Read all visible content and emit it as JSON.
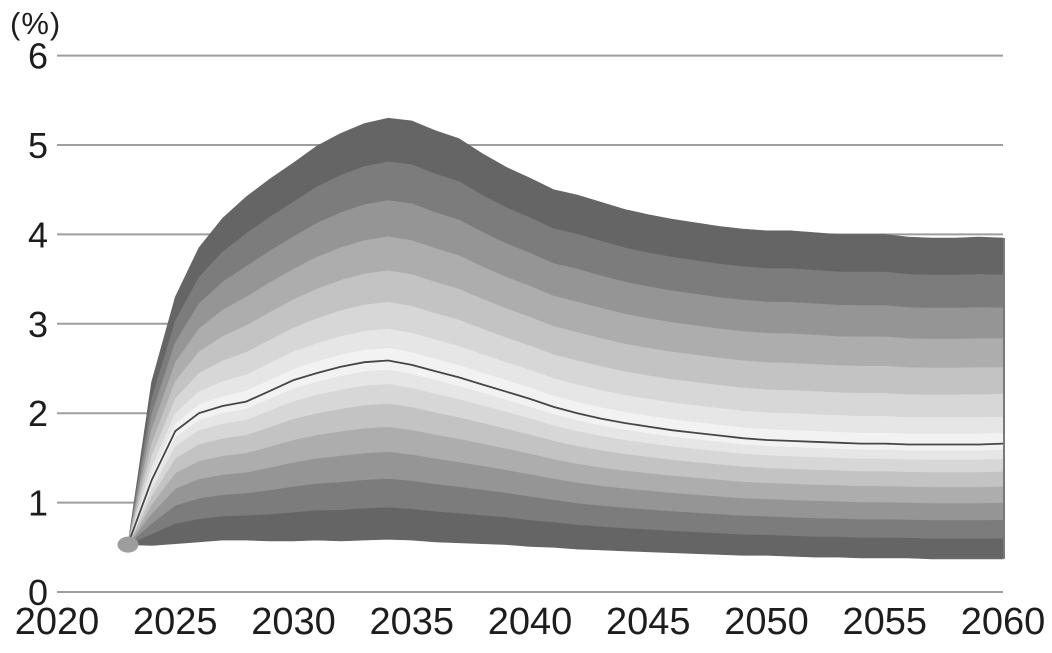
{
  "chart": {
    "unit_label": "(%)",
    "y_ticks": [
      "0",
      "1",
      "2",
      "3",
      "4",
      "5",
      "6"
    ],
    "x_ticks": [
      "2020",
      "2025",
      "2030",
      "2035",
      "2040",
      "2045",
      "2050",
      "2055",
      "2060"
    ]
  },
  "chart_data": {
    "type": "area",
    "subtype": "fan-chart",
    "title": "",
    "xlabel": "",
    "ylabel": "(%)",
    "xlim": [
      2020,
      2060
    ],
    "ylim": [
      0,
      6
    ],
    "grid": "horizontal",
    "legend": "none",
    "x": [
      2023,
      2024,
      2025,
      2026,
      2027,
      2028,
      2029,
      2030,
      2031,
      2032,
      2033,
      2034,
      2035,
      2036,
      2037,
      2038,
      2039,
      2040,
      2041,
      2042,
      2043,
      2044,
      2045,
      2046,
      2047,
      2048,
      2049,
      2050,
      2051,
      2052,
      2053,
      2054,
      2055,
      2056,
      2057,
      2058,
      2059,
      2060
    ],
    "series": [
      {
        "name": "upper_edge",
        "values": [
          0.53,
          2.35,
          3.3,
          3.85,
          4.18,
          4.42,
          4.62,
          4.8,
          4.99,
          5.13,
          5.24,
          5.3,
          5.27,
          5.16,
          5.07,
          4.9,
          4.75,
          4.63,
          4.5,
          4.44,
          4.36,
          4.28,
          4.22,
          4.17,
          4.13,
          4.09,
          4.06,
          4.04,
          4.04,
          4.02,
          4.0,
          4.0,
          4.0,
          3.97,
          3.96,
          3.96,
          3.97,
          3.96
        ]
      },
      {
        "name": "median",
        "values": [
          0.53,
          1.25,
          1.8,
          2.0,
          2.08,
          2.13,
          2.25,
          2.37,
          2.45,
          2.52,
          2.57,
          2.59,
          2.54,
          2.47,
          2.4,
          2.32,
          2.24,
          2.16,
          2.07,
          2.0,
          1.94,
          1.89,
          1.85,
          1.81,
          1.78,
          1.75,
          1.72,
          1.7,
          1.69,
          1.68,
          1.67,
          1.66,
          1.66,
          1.65,
          1.65,
          1.65,
          1.65,
          1.66
        ]
      },
      {
        "name": "lower_edge",
        "values": [
          0.53,
          0.52,
          0.54,
          0.56,
          0.58,
          0.58,
          0.57,
          0.57,
          0.58,
          0.57,
          0.58,
          0.59,
          0.58,
          0.56,
          0.55,
          0.54,
          0.53,
          0.51,
          0.5,
          0.48,
          0.47,
          0.46,
          0.45,
          0.44,
          0.43,
          0.42,
          0.41,
          0.41,
          0.4,
          0.39,
          0.39,
          0.38,
          0.38,
          0.38,
          0.37,
          0.37,
          0.37,
          0.37
        ]
      }
    ],
    "band_fractions_outer_to_inner": [
      1.0,
      0.82,
      0.66,
      0.51,
      0.37,
      0.24,
      0.13,
      0.05
    ],
    "band_colors_outer_to_inner": [
      "#656565",
      "#7c7c7c",
      "#959595",
      "#adadad",
      "#c3c3c3",
      "#d7d7d7",
      "#e6e6e6",
      "#f2f2f2"
    ],
    "start_point": {
      "x": 2023,
      "y": 0.53
    }
  },
  "style": {
    "background": "#ffffff",
    "grid_color": "#9e9e9e",
    "text_color": "#1d1d1d",
    "median_line_color": "#464646",
    "start_dot_color": "#9d9d9d",
    "fan_right_edge_color": "#7a7a7a"
  }
}
